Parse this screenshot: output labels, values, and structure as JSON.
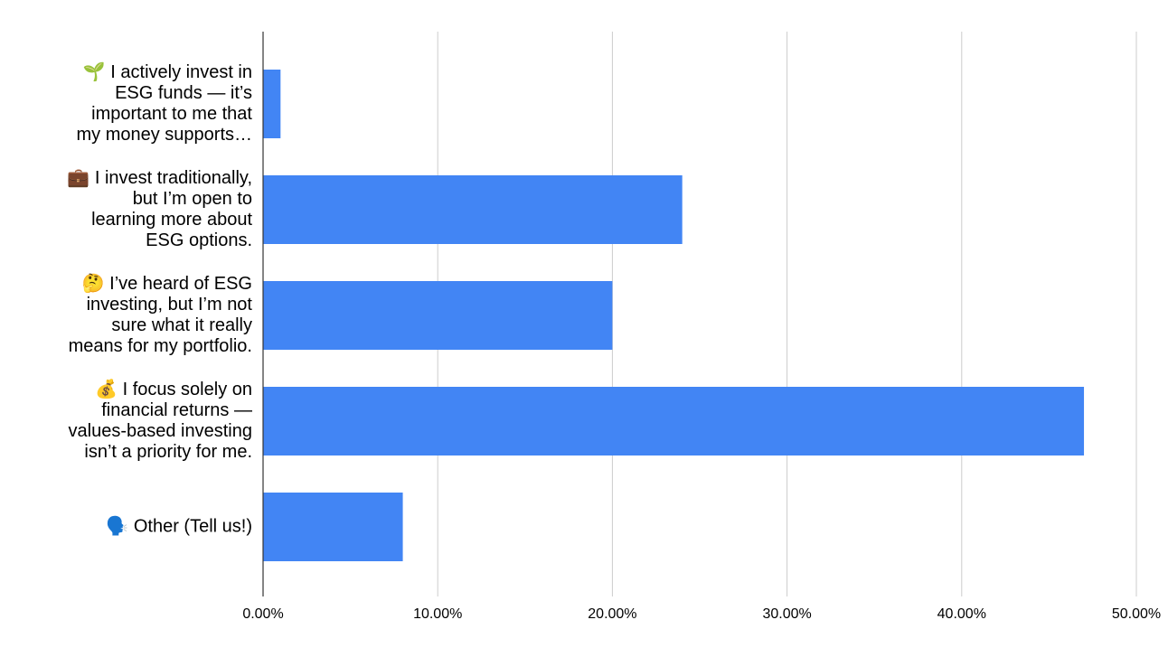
{
  "chart_data": {
    "type": "hbar",
    "categories": [
      "🌱 I actively invest in\nESG funds — it’s\nimportant to me that\nmy money supports…",
      "💼 I invest traditionally,\nbut I’m open to\nlearning more about\nESG options.",
      "🤔 I’ve heard of ESG\ninvesting, but I’m not\nsure what it really\nmeans for my portfolio.",
      "💰 I focus solely on\nfinancial returns —\nvalues-based investing\nisn’t a priority for me.",
      "🗣️ Other (Tell us!)"
    ],
    "values": [
      1,
      24,
      20,
      47,
      8
    ],
    "color": "#4285f4",
    "xlim": [
      0,
      50
    ],
    "xticks": [
      {
        "value": 0,
        "label": "0.00%"
      },
      {
        "value": 10,
        "label": "10.00%"
      },
      {
        "value": 20,
        "label": "20.00%"
      },
      {
        "value": 30,
        "label": "30.00%"
      },
      {
        "value": 40,
        "label": "40.00%"
      },
      {
        "value": 50,
        "label": "50.00%"
      }
    ],
    "grid": true
  }
}
